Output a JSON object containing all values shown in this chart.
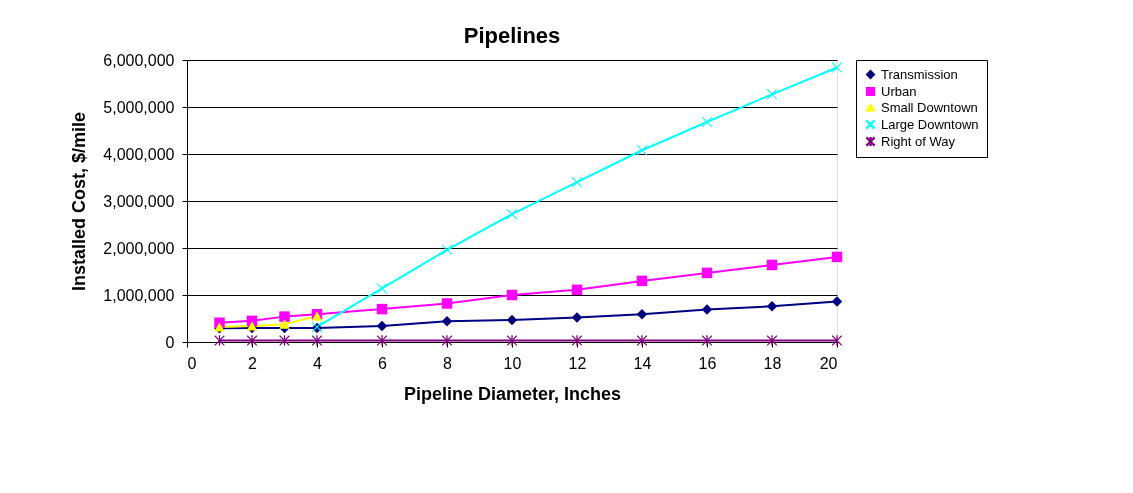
{
  "chart_data": {
    "type": "line",
    "title": "Pipelines",
    "xlabel": "Pipeline Diameter, Inches",
    "ylabel": "Installed Cost, $/mile",
    "xlim": [
      0,
      20
    ],
    "xticks": [
      0,
      2,
      4,
      6,
      8,
      10,
      12,
      14,
      16,
      18,
      20
    ],
    "ylim": [
      0,
      6000000
    ],
    "yticks": [
      0,
      {
        "value": 1000000,
        "label": "1,000,000"
      },
      {
        "value": 2000000,
        "label": "2,000,000"
      },
      {
        "value": 3000000,
        "label": "3,000,000"
      },
      {
        "value": 4000000,
        "label": "4,000,000"
      },
      {
        "value": 5000000,
        "label": "5,000,000"
      },
      {
        "value": 6000000,
        "label": "6,000,000"
      }
    ],
    "grid": "y",
    "legend": "right",
    "line_style": "solid",
    "series": [
      {
        "name": "Transmission",
        "color": "#000080",
        "marker": "diamond",
        "x": [
          1,
          2,
          3,
          4,
          6,
          8,
          10,
          12,
          14,
          16,
          18,
          20
        ],
        "values": [
          290000,
          300000,
          300000,
          300000,
          340000,
          440000,
          470000,
          520000,
          590000,
          690000,
          760000,
          860000
        ]
      },
      {
        "name": "Urban",
        "color": "#ff00ff",
        "marker": "square",
        "x": [
          1,
          2,
          3,
          4,
          6,
          8,
          10,
          12,
          14,
          16,
          18,
          20
        ],
        "values": [
          410000,
          450000,
          540000,
          590000,
          700000,
          820000,
          1000000,
          1110000,
          1300000,
          1470000,
          1640000,
          1810000
        ]
      },
      {
        "name": "Small Downtown",
        "color": "#ffff00",
        "marker": "triangle",
        "x": [
          1,
          2,
          3,
          4
        ],
        "values": [
          320000,
          340000,
          380000,
          550000
        ]
      },
      {
        "name": "Large Downtown",
        "color": "#00ffff",
        "marker": "cross",
        "x": [
          4,
          6,
          8,
          10,
          12,
          14,
          16,
          18,
          20
        ],
        "values": [
          320000,
          1140000,
          1960000,
          2720000,
          3400000,
          4080000,
          4680000,
          5270000,
          5840000
        ]
      },
      {
        "name": "Right of Way",
        "color": "#800080",
        "marker": "star",
        "x": [
          1,
          2,
          3,
          4,
          6,
          8,
          10,
          12,
          14,
          16,
          18,
          20
        ],
        "values": [
          30000,
          30000,
          30000,
          30000,
          30000,
          30000,
          30000,
          30000,
          30000,
          30000,
          30000,
          30000
        ]
      }
    ]
  }
}
